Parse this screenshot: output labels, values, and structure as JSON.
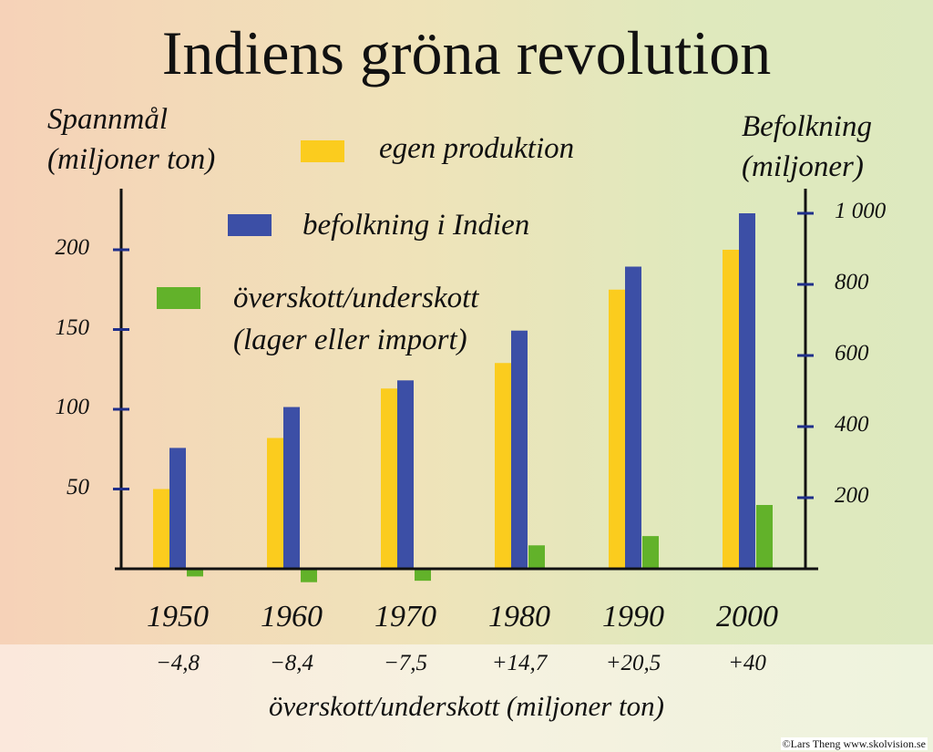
{
  "title": "Indiens gröna revolution",
  "left_axis_title": [
    "Spannmål",
    "(miljoner ton)"
  ],
  "right_axis_title": [
    "Befolkning",
    "(miljoner)"
  ],
  "legend": {
    "production": "egen produktion",
    "population": "befolkning i Indien",
    "surplus": [
      "överskott/underskott",
      "(lager eller import)"
    ]
  },
  "surplus_axis_title": "överskott/underskott (miljoner ton)",
  "copyright": "©Lars Theng www.skolvision.se",
  "colors": {
    "production": "#fbcc1e",
    "population": "#3c4fa6",
    "surplus": "#62b22a",
    "axis": "#111111",
    "tick": "#1f2f8a"
  },
  "chart_data": {
    "type": "bar",
    "title": "Indiens gröna revolution",
    "categories": [
      "1950",
      "1960",
      "1970",
      "1980",
      "1990",
      "2000"
    ],
    "surplus_labels": [
      "−4,8",
      "−8,4",
      "−7,5",
      "+14,7",
      "+20,5",
      "+40"
    ],
    "series": [
      {
        "name": "egen produktion",
        "axis": "left",
        "values": [
          50,
          82,
          113,
          129,
          175,
          200
        ]
      },
      {
        "name": "befolkning i Indien",
        "axis": "right",
        "values": [
          340,
          455,
          530,
          670,
          850,
          1000
        ]
      },
      {
        "name": "överskott/underskott",
        "axis": "left",
        "values": [
          -4.8,
          -8.4,
          -7.5,
          14.7,
          20.5,
          40
        ]
      }
    ],
    "left_axis": {
      "label": "Spannmål (miljoner ton)",
      "ticks": [
        50,
        100,
        150,
        200
      ],
      "tick_labels": [
        "50",
        "100",
        "150",
        "200"
      ]
    },
    "right_axis": {
      "label": "Befolkning (miljoner)",
      "ticks": [
        200,
        400,
        600,
        800,
        1000
      ],
      "tick_labels": [
        "200",
        "400",
        "600",
        "800",
        "1 000"
      ]
    },
    "grid": false,
    "legend_position": "top-left"
  }
}
